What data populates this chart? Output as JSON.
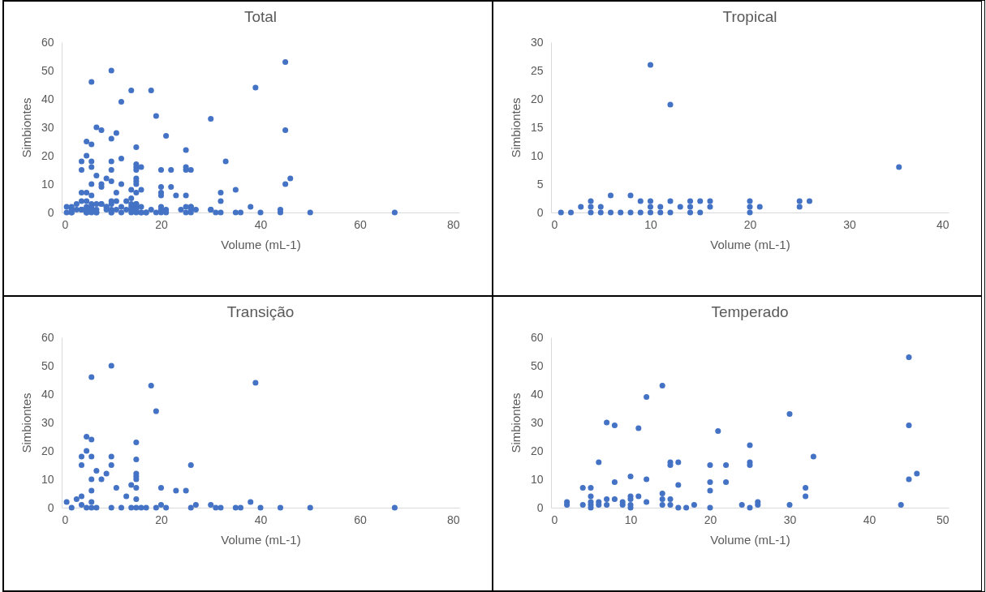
{
  "chart_data": [
    {
      "type": "scatter",
      "title": "Total",
      "xlabel": "Volume (mL-1)",
      "ylabel": "Simbiontes",
      "xlim": [
        0,
        80
      ],
      "xticks": [
        0,
        20,
        40,
        60,
        80
      ],
      "ylim": [
        0,
        60
      ],
      "yticks": [
        0,
        10,
        20,
        30,
        40,
        50,
        60
      ],
      "grid": false,
      "marker": "circle",
      "series": [
        {
          "color": "#4472c4",
          "x": [
            1,
            2,
            3,
            4,
            5,
            6,
            7,
            8,
            9,
            10,
            11,
            12,
            13,
            14,
            15,
            16,
            20,
            21,
            25,
            26,
            35,
            1,
            2,
            3,
            4,
            4,
            4,
            4,
            5,
            5,
            5,
            6,
            6,
            6,
            6,
            6,
            6,
            6,
            7,
            7,
            8,
            9,
            10,
            10,
            10,
            10,
            11,
            12,
            13,
            14,
            14,
            15,
            15,
            15,
            15,
            15,
            15,
            15,
            15,
            16,
            17,
            18,
            19,
            19,
            20,
            20,
            21,
            23,
            25,
            26,
            26,
            27,
            30,
            31,
            32,
            35,
            36,
            38,
            39,
            40,
            44,
            50,
            67,
            2,
            2,
            4,
            4,
            5,
            5,
            5,
            5,
            5,
            6,
            6,
            7,
            7,
            7,
            8,
            8,
            8,
            9,
            9,
            10,
            10,
            10,
            10,
            10,
            11,
            11,
            12,
            12,
            12,
            14,
            14,
            14,
            14,
            15,
            15,
            15,
            15,
            16,
            16,
            16,
            17,
            18,
            20,
            20,
            20,
            20,
            21,
            22,
            22,
            24,
            25,
            25,
            25,
            25,
            26,
            26,
            30,
            30,
            32,
            32,
            33,
            44,
            45,
            45,
            45,
            46
          ],
          "values": [
            0,
            0,
            1,
            1,
            0,
            3,
            0,
            3,
            2,
            26,
            1,
            19,
            1,
            2,
            2,
            2,
            2,
            1,
            2,
            2,
            8,
            2,
            0,
            3,
            4,
            18,
            15,
            1,
            25,
            20,
            0,
            24,
            46,
            18,
            10,
            6,
            2,
            0,
            13,
            0,
            10,
            12,
            50,
            18,
            15,
            0,
            7,
            0,
            4,
            8,
            0,
            23,
            17,
            12,
            11,
            10,
            7,
            3,
            0,
            0,
            0,
            43,
            34,
            0,
            7,
            1,
            0,
            6,
            6,
            15,
            0,
            1,
            1,
            0,
            0,
            0,
            0,
            2,
            44,
            0,
            0,
            0,
            0,
            2,
            1,
            7,
            1,
            7,
            4,
            2,
            0,
            1,
            16,
            1,
            30,
            3,
            1,
            29,
            9,
            3,
            2,
            1,
            11,
            4,
            3,
            0,
            1,
            28,
            4,
            39,
            10,
            2,
            43,
            5,
            1,
            3,
            16,
            15,
            3,
            1,
            16,
            8,
            0,
            0,
            1,
            15,
            9,
            6,
            0,
            27,
            15,
            9,
            1,
            22,
            16,
            15,
            0,
            2,
            1,
            33,
            1,
            7,
            4,
            18,
            1,
            53,
            29,
            10,
            12
          ]
        }
      ]
    },
    {
      "type": "scatter",
      "title": "Tropical",
      "xlabel": "Volume (mL-1)",
      "ylabel": "Simbiontes",
      "xlim": [
        0,
        40
      ],
      "xticks": [
        0,
        10,
        20,
        30,
        40
      ],
      "ylim": [
        0,
        30
      ],
      "yticks": [
        0,
        5,
        10,
        15,
        20,
        25,
        30
      ],
      "grid": false,
      "marker": "circle",
      "series": [
        {
          "color": "#4472c4",
          "x": [
            1,
            2,
            3,
            4,
            4,
            4,
            5,
            5,
            6,
            6,
            7,
            8,
            8,
            9,
            9,
            10,
            10,
            10,
            10,
            11,
            11,
            12,
            12,
            12,
            13,
            14,
            14,
            14,
            15,
            15,
            16,
            16,
            20,
            20,
            20,
            21,
            25,
            25,
            26,
            35
          ],
          "values": [
            0,
            0,
            1,
            0,
            1,
            2,
            0,
            1,
            0,
            3,
            0,
            0,
            3,
            0,
            2,
            0,
            1,
            2,
            26,
            0,
            1,
            0,
            2,
            19,
            1,
            0,
            1,
            2,
            0,
            2,
            1,
            2,
            0,
            1,
            2,
            1,
            1,
            2,
            2,
            8
          ]
        }
      ]
    },
    {
      "type": "scatter",
      "title": "Transição",
      "xlabel": "Volume (mL-1)",
      "ylabel": "Simbiontes",
      "xlim": [
        0,
        80
      ],
      "xticks": [
        0,
        20,
        40,
        60,
        80
      ],
      "ylim": [
        0,
        60
      ],
      "yticks": [
        0,
        10,
        20,
        30,
        40,
        50,
        60
      ],
      "grid": false,
      "marker": "circle",
      "series": [
        {
          "color": "#4472c4",
          "x": [
            1,
            2,
            3,
            4,
            4,
            4,
            4,
            5,
            5,
            5,
            6,
            6,
            6,
            6,
            6,
            6,
            6,
            7,
            7,
            8,
            9,
            10,
            10,
            10,
            10,
            11,
            12,
            13,
            14,
            14,
            15,
            15,
            15,
            15,
            15,
            15,
            15,
            15,
            16,
            17,
            18,
            19,
            19,
            20,
            20,
            21,
            23,
            25,
            26,
            26,
            27,
            30,
            31,
            32,
            35,
            36,
            38,
            39,
            40,
            44,
            50,
            67
          ],
          "values": [
            2,
            0,
            3,
            4,
            18,
            15,
            1,
            25,
            20,
            0,
            24,
            46,
            18,
            10,
            6,
            2,
            0,
            13,
            0,
            10,
            12,
            50,
            18,
            15,
            0,
            7,
            0,
            4,
            8,
            0,
            23,
            17,
            12,
            11,
            10,
            7,
            3,
            0,
            0,
            0,
            43,
            34,
            0,
            7,
            1,
            0,
            6,
            6,
            15,
            0,
            1,
            1,
            0,
            0,
            0,
            0,
            2,
            44,
            0,
            0,
            0,
            0
          ]
        }
      ]
    },
    {
      "type": "scatter",
      "title": "Temperado",
      "xlabel": "Volume (mL-1)",
      "ylabel": "Simbiontes",
      "xlim": [
        0,
        50
      ],
      "xticks": [
        0,
        10,
        20,
        30,
        40,
        50
      ],
      "ylim": [
        0,
        60
      ],
      "yticks": [
        0,
        10,
        20,
        30,
        40,
        50,
        60
      ],
      "grid": false,
      "marker": "circle",
      "series": [
        {
          "color": "#4472c4",
          "x": [
            2,
            2,
            4,
            4,
            5,
            5,
            5,
            5,
            5,
            6,
            6,
            6,
            7,
            7,
            7,
            8,
            8,
            8,
            9,
            9,
            10,
            10,
            10,
            10,
            10,
            11,
            11,
            12,
            12,
            12,
            14,
            14,
            14,
            14,
            15,
            15,
            15,
            15,
            16,
            16,
            16,
            17,
            18,
            20,
            20,
            20,
            20,
            21,
            22,
            22,
            24,
            25,
            25,
            25,
            25,
            26,
            26,
            30,
            30,
            32,
            32,
            33,
            44,
            45,
            45,
            45,
            46
          ],
          "values": [
            2,
            1,
            7,
            1,
            7,
            4,
            2,
            0,
            1,
            16,
            2,
            1,
            30,
            3,
            1,
            29,
            9,
            3,
            2,
            1,
            11,
            4,
            3,
            0,
            1,
            28,
            4,
            39,
            10,
            2,
            43,
            5,
            1,
            3,
            16,
            15,
            3,
            1,
            16,
            8,
            0,
            0,
            1,
            15,
            9,
            6,
            0,
            27,
            15,
            9,
            1,
            22,
            16,
            15,
            0,
            2,
            1,
            33,
            1,
            7,
            4,
            18,
            1,
            53,
            29,
            10,
            12
          ]
        }
      ]
    }
  ]
}
